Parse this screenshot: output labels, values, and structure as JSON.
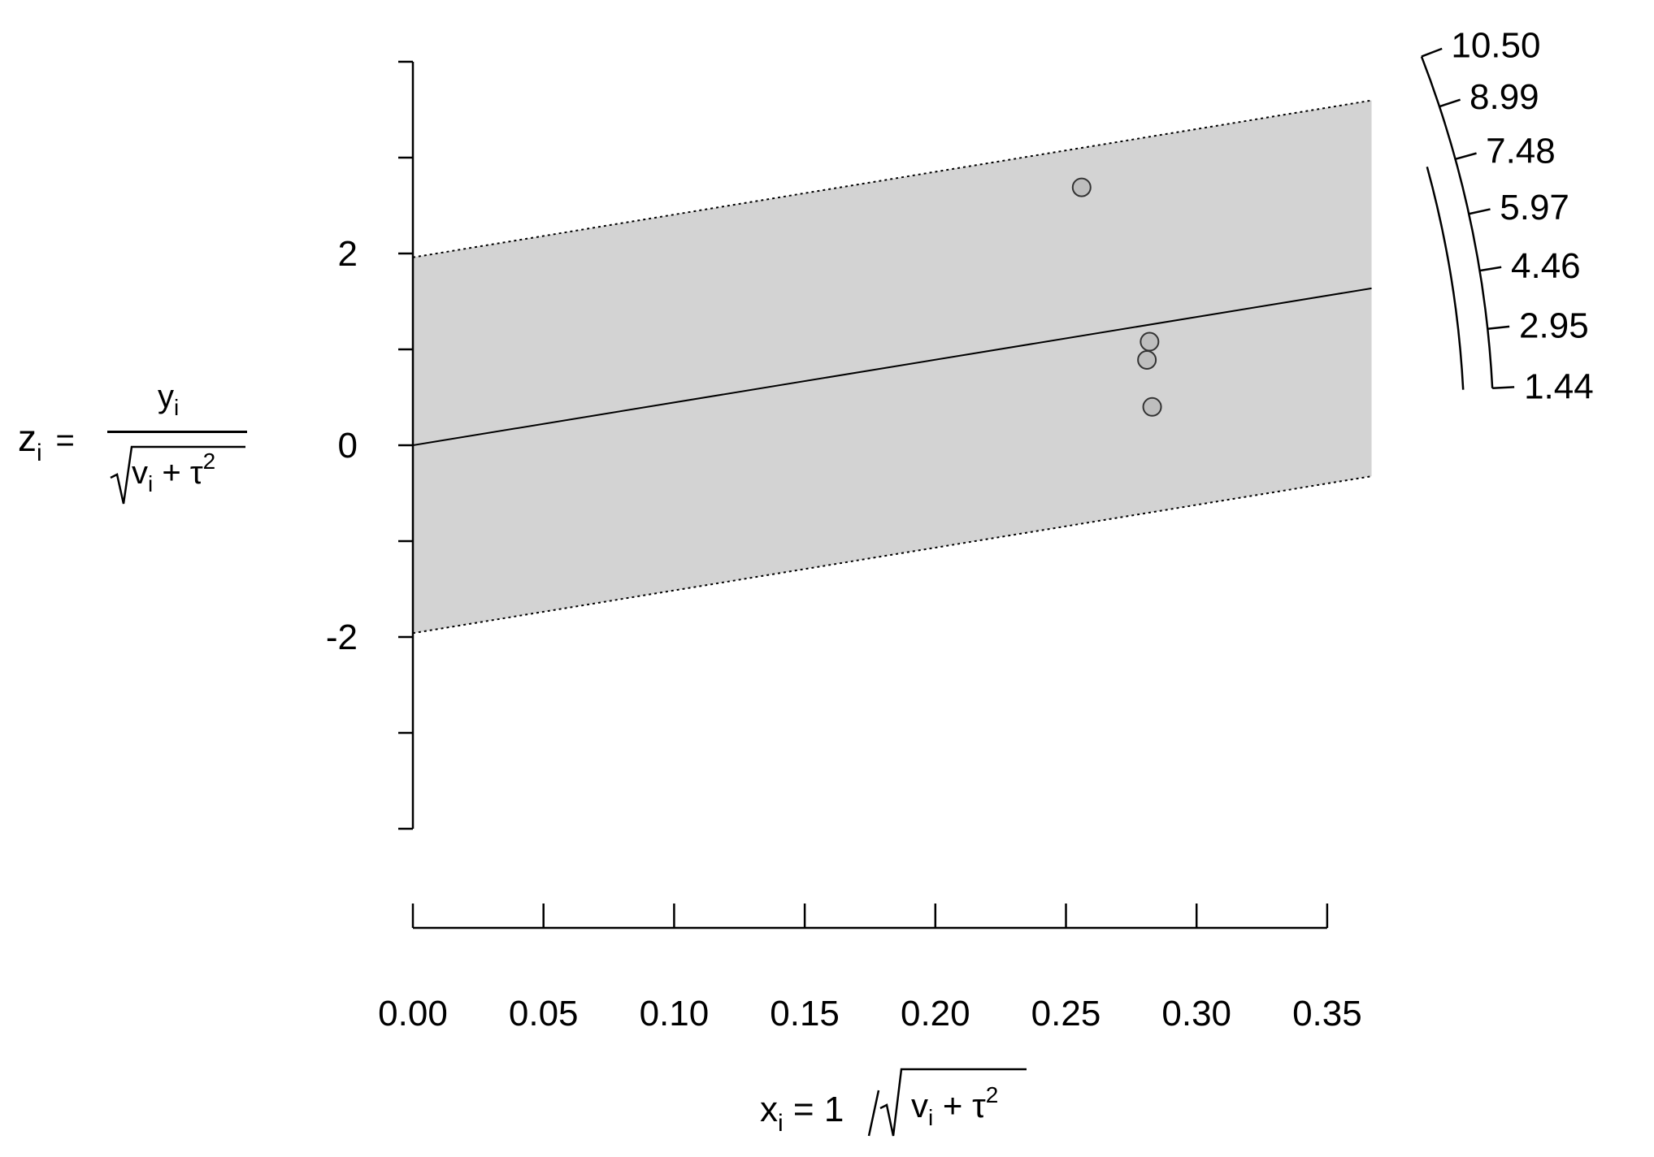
{
  "chart_data": {
    "type": "scatter",
    "subtype": "radial (Galbraith) plot",
    "xlabel": {
      "lhs_var": "x",
      "lhs_sub": "i",
      "num": "1",
      "rad_var": "v",
      "rad_sub": "i",
      "plus": "+",
      "tau": "τ",
      "sup": "2",
      "eq": "="
    },
    "ylabel": {
      "lhs_var": "z",
      "lhs_sub": "i",
      "num_var": "y",
      "num_sub": "i",
      "rad_var": "v",
      "rad_sub": "i",
      "plus": "+",
      "tau": "τ",
      "sup": "2",
      "eq": "="
    },
    "xlim": [
      0,
      0.367
    ],
    "ylim": [
      -4,
      4
    ],
    "x_ticks": [
      "0.00",
      "0.05",
      "0.10",
      "0.15",
      "0.20",
      "0.25",
      "0.30",
      "0.35"
    ],
    "x_tick_values": [
      0,
      0.05,
      0.1,
      0.15,
      0.2,
      0.25,
      0.3,
      0.35
    ],
    "y_ticks_labeled": [
      "-2",
      "0",
      "2"
    ],
    "y_ticks_labeled_values": [
      -2,
      0,
      2
    ],
    "y_ticks_all": [
      -4,
      -3,
      -2,
      -1,
      0,
      1,
      2,
      3,
      4
    ],
    "fit_line": {
      "slope": 4.46,
      "intercept": 0
    },
    "band": {
      "upper_intercept": 1.96,
      "lower_intercept": -1.96,
      "slope": 4.46,
      "fill": "#d3d3d3"
    },
    "points": [
      {
        "x": 0.256,
        "y": 2.69
      },
      {
        "x": 0.282,
        "y": 1.08
      },
      {
        "x": 0.281,
        "y": 0.89
      },
      {
        "x": 0.283,
        "y": 0.4
      }
    ],
    "point_fill": "#bebebe",
    "arc_scale": {
      "labels": [
        "10.50",
        "8.99",
        "7.48",
        "5.97",
        "4.46",
        "2.95",
        "1.44"
      ],
      "values": [
        10.5,
        8.99,
        7.48,
        5.97,
        4.46,
        2.95,
        1.44
      ]
    }
  }
}
